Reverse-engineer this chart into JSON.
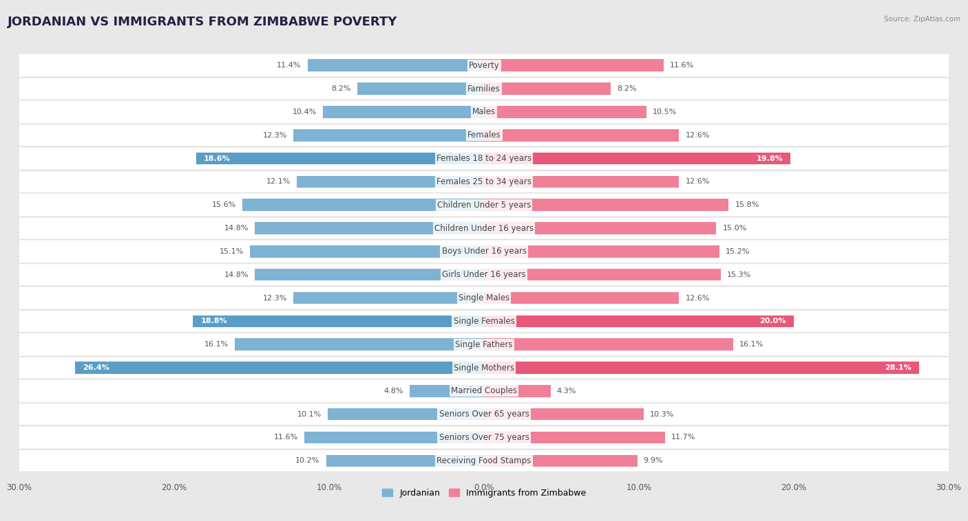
{
  "title": "JORDANIAN VS IMMIGRANTS FROM ZIMBABWE POVERTY",
  "source": "Source: ZipAtlas.com",
  "categories": [
    "Poverty",
    "Families",
    "Males",
    "Females",
    "Females 18 to 24 years",
    "Females 25 to 34 years",
    "Children Under 5 years",
    "Children Under 16 years",
    "Boys Under 16 years",
    "Girls Under 16 years",
    "Single Males",
    "Single Females",
    "Single Fathers",
    "Single Mothers",
    "Married Couples",
    "Seniors Over 65 years",
    "Seniors Over 75 years",
    "Receiving Food Stamps"
  ],
  "left_values": [
    11.4,
    8.2,
    10.4,
    12.3,
    18.6,
    12.1,
    15.6,
    14.8,
    15.1,
    14.8,
    12.3,
    18.8,
    16.1,
    26.4,
    4.8,
    10.1,
    11.6,
    10.2
  ],
  "right_values": [
    11.6,
    8.2,
    10.5,
    12.6,
    19.8,
    12.6,
    15.8,
    15.0,
    15.2,
    15.3,
    12.6,
    20.0,
    16.1,
    28.1,
    4.3,
    10.3,
    11.7,
    9.9
  ],
  "left_color": "#7FB3D3",
  "right_color": "#F08098",
  "highlight_left_color": "#5A9EC8",
  "highlight_right_color": "#E85878",
  "highlight_rows": [
    4,
    11,
    13
  ],
  "axis_max": 30.0,
  "background_color": "#e8e8e8",
  "row_bg_light": "#f5f5f5",
  "row_bg_dark": "#e0e0e0",
  "bar_pill_color": "#ffffff",
  "legend_left": "Jordanian",
  "legend_right": "Immigrants from Zimbabwe",
  "title_fontsize": 13,
  "label_fontsize": 8.5,
  "value_fontsize": 8
}
